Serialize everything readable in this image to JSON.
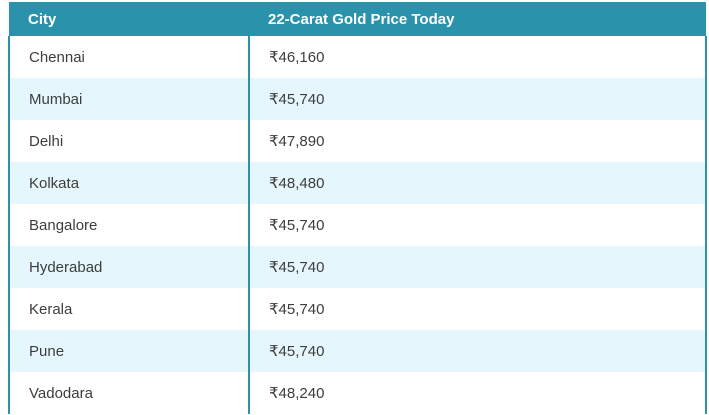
{
  "chart_data": {
    "type": "table",
    "title": "22-Carat Gold Price Today",
    "columns": [
      "City",
      "22-Carat Gold Price Today"
    ],
    "cities": [
      "Chennai",
      "Mumbai",
      "Delhi",
      "Kolkata",
      "Bangalore",
      "Hyderabad",
      "Kerala",
      "Pune",
      "Vadodara"
    ],
    "prices_inr": [
      46160,
      45740,
      47890,
      48480,
      45740,
      45740,
      45740,
      45740,
      48240
    ],
    "currency": "INR",
    "layout": "two-column table, teal header, zebra-striped rows"
  },
  "table": {
    "columns": [
      {
        "label": "City"
      },
      {
        "label": "22-Carat Gold Price Today"
      }
    ],
    "rows": [
      {
        "city": "Chennai",
        "price": "₹46,160"
      },
      {
        "city": "Mumbai",
        "price": "₹45,740"
      },
      {
        "city": "Delhi",
        "price": "₹47,890"
      },
      {
        "city": "Kolkata",
        "price": "₹48,480"
      },
      {
        "city": "Bangalore",
        "price": "₹45,740"
      },
      {
        "city": "Hyderabad",
        "price": "₹45,740"
      },
      {
        "city": "Kerala",
        "price": "₹45,740"
      },
      {
        "city": "Pune",
        "price": "₹45,740"
      },
      {
        "city": "Vadodara",
        "price": "₹48,240"
      }
    ],
    "colors": {
      "header_bg": "#2A93AB",
      "header_text": "#FFFFFF",
      "border": "#2A93AB",
      "row_bg": "#FFFFFF",
      "row_alt_bg": "#E5F6FC",
      "row_text": "#3D3D3D"
    }
  }
}
